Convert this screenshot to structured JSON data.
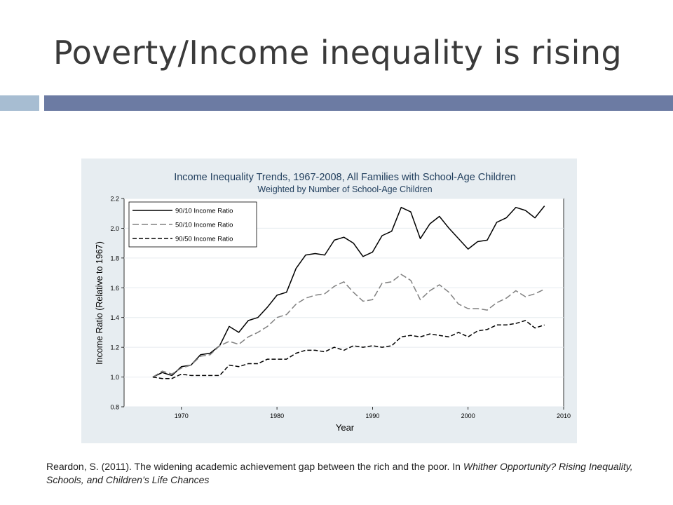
{
  "slide": {
    "title": "Poverty/Income inequality is rising"
  },
  "citation": {
    "text_plain": "Reardon, S. (2011). The widening academic achievement gap between the rich and the poor. In ",
    "text_italic": "Whither Opportunity? Rising Inequality, Schools, and Children’s Life Chances"
  },
  "chart_data": {
    "type": "line",
    "title": "Income Inequality Trends, 1967-2008, All Families with School-Age Children",
    "subtitle": "Weighted by Number of School-Age Children",
    "xlabel": "Year",
    "ylabel": "Income Ratio (Relative to 1967)",
    "xlim": [
      1964,
      2010
    ],
    "ylim": [
      0.8,
      2.2
    ],
    "xticks": [
      1970,
      1980,
      1990,
      2000,
      2010
    ],
    "yticks": [
      "0.8",
      "1.0",
      "1.2",
      "1.4",
      "1.6",
      "1.8",
      "2.0",
      "2.2"
    ],
    "grid": true,
    "legend_position": "top-left",
    "x": [
      1967,
      1968,
      1969,
      1970,
      1971,
      1972,
      1973,
      1974,
      1975,
      1976,
      1977,
      1978,
      1979,
      1980,
      1981,
      1982,
      1983,
      1984,
      1985,
      1986,
      1987,
      1988,
      1989,
      1990,
      1991,
      1992,
      1993,
      1994,
      1995,
      1996,
      1997,
      1998,
      1999,
      2000,
      2001,
      2002,
      2003,
      2004,
      2005,
      2006,
      2007,
      2008
    ],
    "series": [
      {
        "name": "90/10 Income Ratio",
        "style": "solid",
        "color": "#000000",
        "values": [
          1.0,
          1.03,
          1.01,
          1.07,
          1.08,
          1.15,
          1.16,
          1.21,
          1.34,
          1.3,
          1.38,
          1.4,
          1.47,
          1.55,
          1.57,
          1.73,
          1.82,
          1.83,
          1.82,
          1.92,
          1.94,
          1.9,
          1.81,
          1.84,
          1.95,
          1.98,
          2.14,
          2.11,
          1.93,
          2.03,
          2.08,
          2.0,
          1.93,
          1.86,
          1.91,
          1.92,
          2.04,
          2.07,
          2.14,
          2.12,
          2.07,
          2.15
        ]
      },
      {
        "name": "50/10 Income Ratio",
        "style": "longdash",
        "color": "#808080",
        "values": [
          1.0,
          1.04,
          1.02,
          1.06,
          1.08,
          1.14,
          1.15,
          1.21,
          1.24,
          1.22,
          1.27,
          1.3,
          1.34,
          1.4,
          1.42,
          1.49,
          1.53,
          1.55,
          1.56,
          1.61,
          1.64,
          1.57,
          1.51,
          1.52,
          1.63,
          1.64,
          1.69,
          1.65,
          1.52,
          1.58,
          1.62,
          1.57,
          1.49,
          1.46,
          1.46,
          1.45,
          1.5,
          1.53,
          1.58,
          1.54,
          1.56,
          1.59
        ]
      },
      {
        "name": "90/50 Income Ratio",
        "style": "dash",
        "color": "#000000",
        "values": [
          1.0,
          0.99,
          0.99,
          1.02,
          1.01,
          1.01,
          1.01,
          1.01,
          1.08,
          1.07,
          1.09,
          1.09,
          1.12,
          1.12,
          1.12,
          1.16,
          1.18,
          1.18,
          1.17,
          1.2,
          1.18,
          1.21,
          1.2,
          1.21,
          1.2,
          1.21,
          1.27,
          1.28,
          1.27,
          1.29,
          1.28,
          1.27,
          1.3,
          1.27,
          1.31,
          1.32,
          1.35,
          1.35,
          1.36,
          1.38,
          1.33,
          1.35
        ]
      }
    ]
  }
}
